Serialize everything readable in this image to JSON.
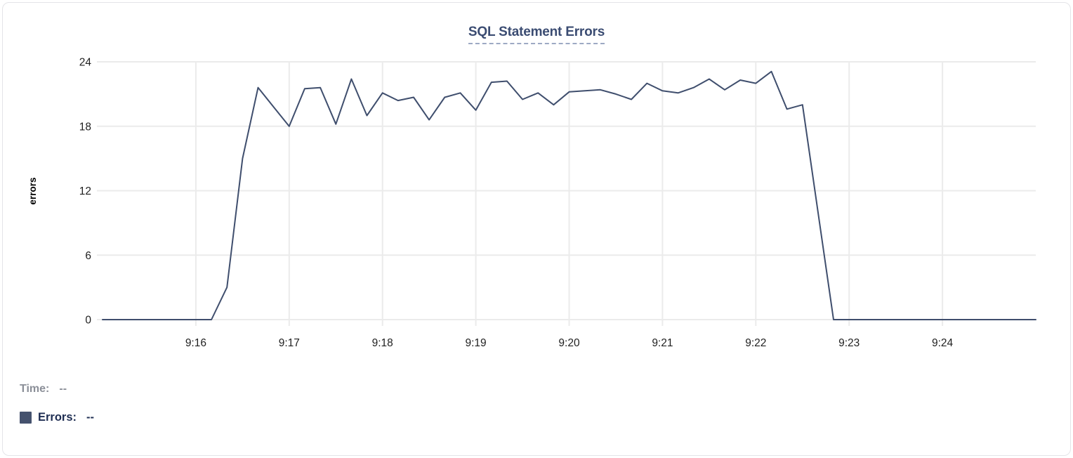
{
  "chart_data": {
    "type": "line",
    "title": "SQL Statement Errors",
    "ylabel": "errors",
    "xlabel": "",
    "y_ticks": [
      0,
      6,
      12,
      18,
      24
    ],
    "ylim": [
      0,
      24
    ],
    "x_tick_labels": [
      "9:16",
      "9:17",
      "9:18",
      "9:19",
      "9:20",
      "9:21",
      "9:22",
      "9:23",
      "9:24"
    ],
    "x_domain": [
      "9:15:00",
      "9:25:00"
    ],
    "x_step_seconds": 10,
    "grid": true,
    "legend_position": "bottom-left",
    "series": [
      {
        "name": "Errors",
        "color": "#3f4e6d",
        "start_time": "9:15:00",
        "values": [
          0,
          0,
          0,
          0,
          0,
          0,
          0,
          0,
          3,
          15,
          21.6,
          19.8,
          18,
          21.5,
          21.6,
          18.2,
          22.4,
          19,
          21.1,
          20.4,
          20.7,
          18.6,
          20.7,
          21.1,
          19.5,
          22.1,
          22.2,
          20.5,
          21.1,
          20,
          21.2,
          21.3,
          21.4,
          21,
          20.5,
          22,
          21.3,
          21.1,
          21.6,
          22.4,
          21.4,
          22.3,
          22,
          23.1,
          19.6,
          20,
          10,
          0,
          0,
          0,
          0,
          0,
          0,
          0,
          0,
          0,
          0,
          0,
          0,
          0,
          0
        ]
      }
    ]
  },
  "legend": {
    "time_label": "Time:",
    "time_value": "--",
    "errors_label": "Errors:",
    "errors_value": "--",
    "swatch_color": "#45526e"
  },
  "colors": {
    "line": "#3f4e6d",
    "grid": "#ebebeb",
    "tick_text": "#1f1f1f",
    "title_text": "#3b4c72",
    "title_underline": "#9da9c4",
    "time_text": "#8b8f98",
    "errors_text": "#1e2d52"
  }
}
